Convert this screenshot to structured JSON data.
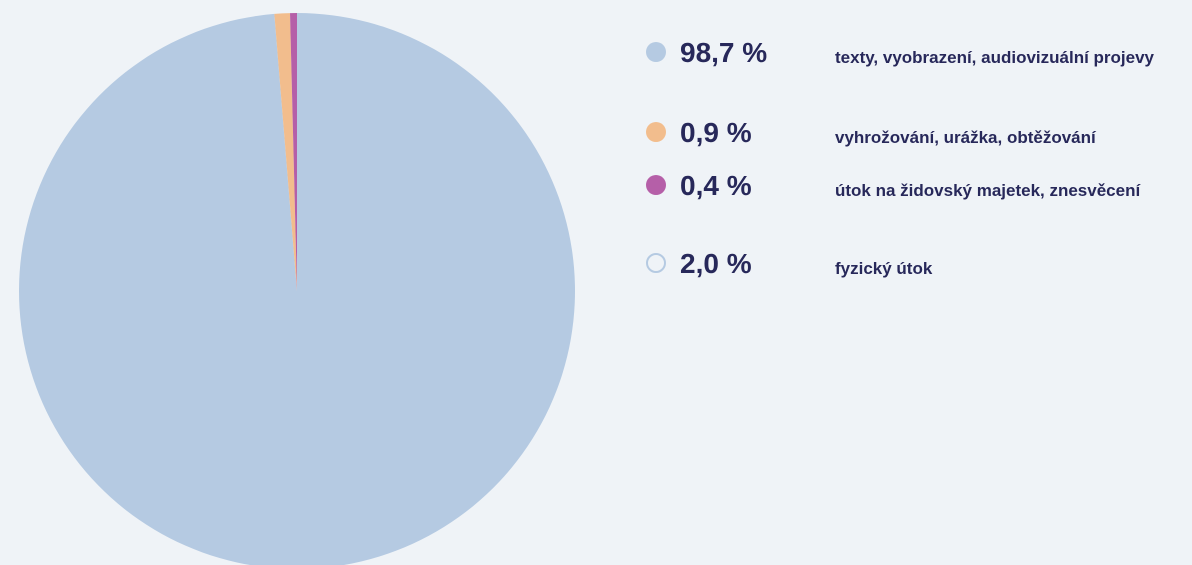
{
  "chart_data": {
    "type": "pie",
    "categories": [
      "texty, vyobrazení, audiovizuální projevy",
      "vyhrožování, urážka, obtěžování",
      "útok na židovský majetek, znesvěcení",
      "fyzický útok"
    ],
    "values": [
      98.7,
      0.9,
      0.4,
      2.0
    ],
    "value_labels": [
      "98,7 %",
      "0,9 %",
      "0,4 %",
      "2,0 %"
    ],
    "colors": [
      "#b5cae2",
      "#f2bd8d",
      "#b55fa8",
      "#b5cae2"
    ],
    "hidden": [
      false,
      false,
      false,
      true
    ],
    "legend": "right"
  }
}
